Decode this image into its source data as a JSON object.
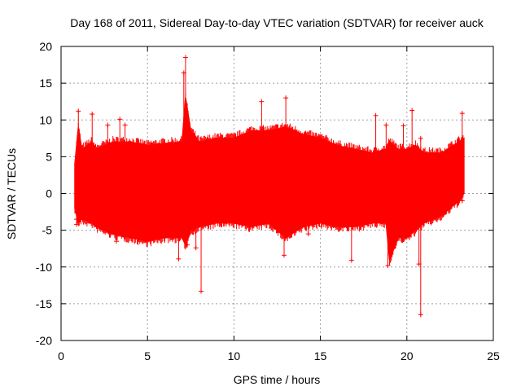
{
  "chart_data": {
    "type": "scatter",
    "title": "Day 168 of 2011, Sidereal Day-to-day VTEC variation (SDTVAR) for receiver auck",
    "xlabel": "GPS time / hours",
    "ylabel": "SDTVAR / TECUs",
    "xlim": [
      0,
      25
    ],
    "ylim": [
      -20,
      20
    ],
    "xticks": [
      0,
      5,
      10,
      15,
      20,
      25
    ],
    "yticks": [
      -20,
      -15,
      -10,
      -5,
      0,
      5,
      10,
      15,
      20
    ],
    "grid": true,
    "marker": "+",
    "color": "#ff0000",
    "series": [
      {
        "name": "SDTVAR",
        "envelope": {
          "x": [
            0.8,
            1.0,
            1.2,
            1.8,
            2.0,
            3.0,
            4.0,
            5.0,
            6.0,
            7.0,
            7.2,
            7.5,
            8.0,
            9.0,
            10.0,
            11.0,
            12.0,
            13.0,
            14.0,
            15.0,
            16.0,
            17.0,
            18.0,
            18.8,
            19.0,
            19.5,
            20.0,
            20.5,
            21.0,
            22.0,
            23.0,
            23.3
          ],
          "upper": [
            4.0,
            9.0,
            6.0,
            7.0,
            6.0,
            7.0,
            7.0,
            6.5,
            6.8,
            7.0,
            13.0,
            8.5,
            7.0,
            7.5,
            7.5,
            8.5,
            8.5,
            9.0,
            8.0,
            7.5,
            6.5,
            6.0,
            5.5,
            6.0,
            7.0,
            6.0,
            6.0,
            6.5,
            5.5,
            5.5,
            7.0,
            7.5
          ],
          "lower": [
            -2.0,
            -4.0,
            -3.5,
            -4.0,
            -4.5,
            -5.5,
            -6.0,
            -6.5,
            -6.0,
            -6.0,
            -7.0,
            -5.0,
            -4.5,
            -4.0,
            -4.0,
            -4.5,
            -4.0,
            -6.0,
            -4.5,
            -4.0,
            -4.5,
            -4.5,
            -4.0,
            -4.0,
            -9.0,
            -6.0,
            -6.0,
            -5.0,
            -4.0,
            -3.0,
            -1.0,
            0.0
          ]
        },
        "outliers": [
          {
            "x": 7.2,
            "y": 18.5
          },
          {
            "x": 7.1,
            "y": 16.4
          },
          {
            "x": 13.0,
            "y": 13.0
          },
          {
            "x": 11.6,
            "y": 12.5
          },
          {
            "x": 20.3,
            "y": 11.3
          },
          {
            "x": 1.0,
            "y": 11.2
          },
          {
            "x": 1.8,
            "y": 10.8
          },
          {
            "x": 23.2,
            "y": 10.9
          },
          {
            "x": 18.2,
            "y": 10.6
          },
          {
            "x": 3.4,
            "y": 10.1
          },
          {
            "x": 2.7,
            "y": 9.3
          },
          {
            "x": 3.7,
            "y": 9.3
          },
          {
            "x": 19.8,
            "y": 9.2
          },
          {
            "x": 18.8,
            "y": 9.3
          },
          {
            "x": 20.8,
            "y": 7.5
          },
          {
            "x": 0.9,
            "y": -3.5
          },
          {
            "x": 0.9,
            "y": -4.2
          },
          {
            "x": 3.2,
            "y": -6.5
          },
          {
            "x": 7.3,
            "y": -7.0
          },
          {
            "x": 7.8,
            "y": -7.4
          },
          {
            "x": 6.8,
            "y": -8.9
          },
          {
            "x": 12.9,
            "y": -8.4
          },
          {
            "x": 14.3,
            "y": -5.5
          },
          {
            "x": 16.8,
            "y": -9.1
          },
          {
            "x": 18.9,
            "y": -9.8
          },
          {
            "x": 20.7,
            "y": -9.6
          },
          {
            "x": 23.2,
            "y": -1.0
          },
          {
            "x": 8.1,
            "y": -13.3
          },
          {
            "x": 20.8,
            "y": -16.5
          }
        ]
      }
    ]
  }
}
